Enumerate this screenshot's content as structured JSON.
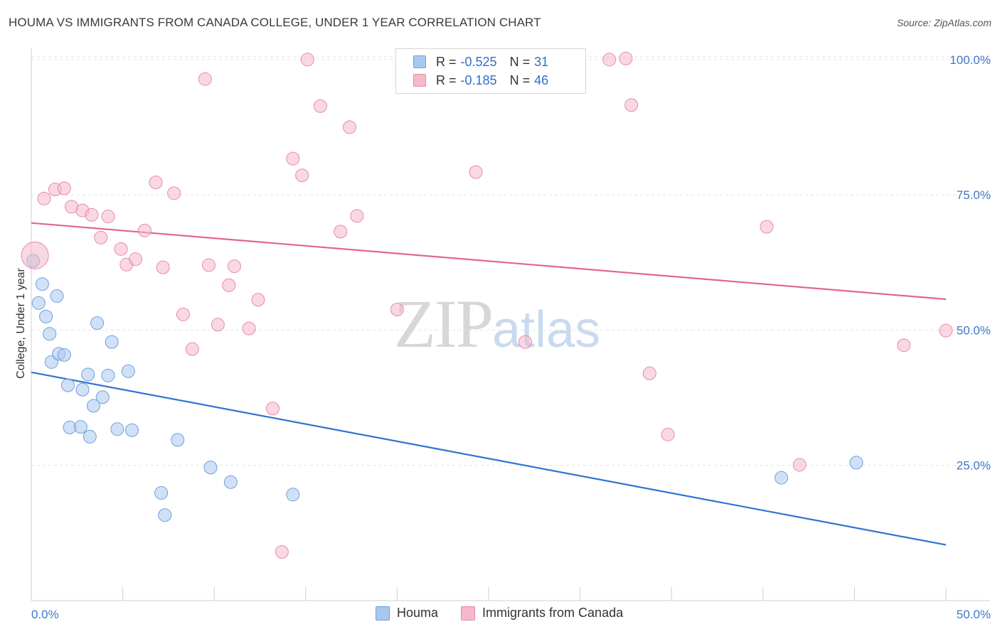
{
  "header": {
    "title": "HOUMA VS IMMIGRANTS FROM CANADA COLLEGE, UNDER 1 YEAR CORRELATION CHART",
    "source": "Source: ZipAtlas.com"
  },
  "watermark": {
    "zip": "ZIP",
    "atlas": "atlas"
  },
  "legend_stats": [
    {
      "r_label": "R =",
      "r_value": "-0.525",
      "n_label": "N =",
      "n_value": "31",
      "color": "#a9c8f0"
    },
    {
      "r_label": "R =",
      "r_value": "-0.185",
      "n_label": "N =",
      "n_value": "46",
      "color": "#f6b8cb"
    }
  ],
  "bottom_legend": [
    {
      "label": "Houma",
      "color": "#a9c8f0"
    },
    {
      "label": "Immigrants from Canada",
      "color": "#f6b8cb"
    }
  ],
  "chart_data": {
    "type": "scatter",
    "title": "HOUMA VS IMMIGRANTS FROM CANADA COLLEGE, UNDER 1 YEAR CORRELATION CHART",
    "xlabel": "",
    "ylabel": "College, Under 1 year",
    "xlim": [
      0,
      50
    ],
    "ylim": [
      0,
      102
    ],
    "x_tick_labels": [
      "0.0%",
      "50.0%"
    ],
    "y_ticks": [
      25,
      50,
      75,
      100
    ],
    "y_tick_labels": [
      "25.0%",
      "50.0%",
      "75.0%",
      "100.0%"
    ],
    "grid": true,
    "series": [
      {
        "name": "Houma",
        "color": "#a9c8f0",
        "line_color": "#2e74d1",
        "trend": [
          [
            0,
            42.2
          ],
          [
            50,
            10.3
          ]
        ],
        "points": [
          [
            0.1,
            62.8
          ],
          [
            0.4,
            55.0
          ],
          [
            0.6,
            58.5
          ],
          [
            0.8,
            52.5
          ],
          [
            1.0,
            49.3
          ],
          [
            1.1,
            44.1
          ],
          [
            1.4,
            56.3
          ],
          [
            1.5,
            45.6
          ],
          [
            1.8,
            45.4
          ],
          [
            2.0,
            39.8
          ],
          [
            2.1,
            32.0
          ],
          [
            2.7,
            32.1
          ],
          [
            2.8,
            39.0
          ],
          [
            3.1,
            41.8
          ],
          [
            3.2,
            30.3
          ],
          [
            3.4,
            36.0
          ],
          [
            3.6,
            51.3
          ],
          [
            3.9,
            37.6
          ],
          [
            4.2,
            41.6
          ],
          [
            4.4,
            47.8
          ],
          [
            4.7,
            31.7
          ],
          [
            5.3,
            42.4
          ],
          [
            5.5,
            31.5
          ],
          [
            7.1,
            19.9
          ],
          [
            7.3,
            15.8
          ],
          [
            8.0,
            29.7
          ],
          [
            9.8,
            24.6
          ],
          [
            10.9,
            21.9
          ],
          [
            14.3,
            19.6
          ],
          [
            41.0,
            22.7
          ],
          [
            45.1,
            25.5
          ]
        ]
      },
      {
        "name": "Immigrants from Canada",
        "color": "#f6b8cb",
        "line_color": "#e2668f",
        "trend": [
          [
            0,
            69.8
          ],
          [
            50,
            55.7
          ]
        ],
        "points": [
          [
            0.2,
            63.8
          ],
          [
            0.7,
            74.3
          ],
          [
            1.3,
            76.0
          ],
          [
            1.8,
            76.2
          ],
          [
            2.2,
            72.8
          ],
          [
            2.8,
            72.1
          ],
          [
            3.3,
            71.3
          ],
          [
            3.8,
            67.1
          ],
          [
            4.2,
            71.0
          ],
          [
            4.9,
            65.0
          ],
          [
            5.2,
            62.1
          ],
          [
            5.7,
            63.1
          ],
          [
            6.2,
            68.4
          ],
          [
            6.8,
            77.3
          ],
          [
            7.2,
            61.6
          ],
          [
            7.8,
            75.3
          ],
          [
            8.3,
            52.9
          ],
          [
            8.8,
            46.5
          ],
          [
            9.5,
            96.4
          ],
          [
            9.7,
            62.0
          ],
          [
            10.2,
            51.0
          ],
          [
            10.8,
            58.3
          ],
          [
            11.1,
            61.8
          ],
          [
            11.9,
            50.3
          ],
          [
            12.4,
            55.6
          ],
          [
            13.2,
            35.5
          ],
          [
            13.7,
            9.0
          ],
          [
            14.3,
            81.7
          ],
          [
            14.8,
            78.6
          ],
          [
            15.1,
            100.0
          ],
          [
            15.8,
            91.4
          ],
          [
            16.9,
            68.2
          ],
          [
            17.4,
            87.5
          ],
          [
            17.8,
            71.1
          ],
          [
            20.0,
            53.8
          ],
          [
            24.3,
            79.2
          ],
          [
            27.0,
            47.8
          ],
          [
            31.6,
            100.0
          ],
          [
            32.8,
            91.6
          ],
          [
            33.8,
            42.0
          ],
          [
            34.8,
            30.7
          ],
          [
            40.2,
            69.1
          ],
          [
            42.0,
            25.1
          ],
          [
            47.7,
            47.2
          ],
          [
            50.0,
            49.9
          ],
          [
            32.5,
            100.2
          ]
        ]
      }
    ]
  }
}
